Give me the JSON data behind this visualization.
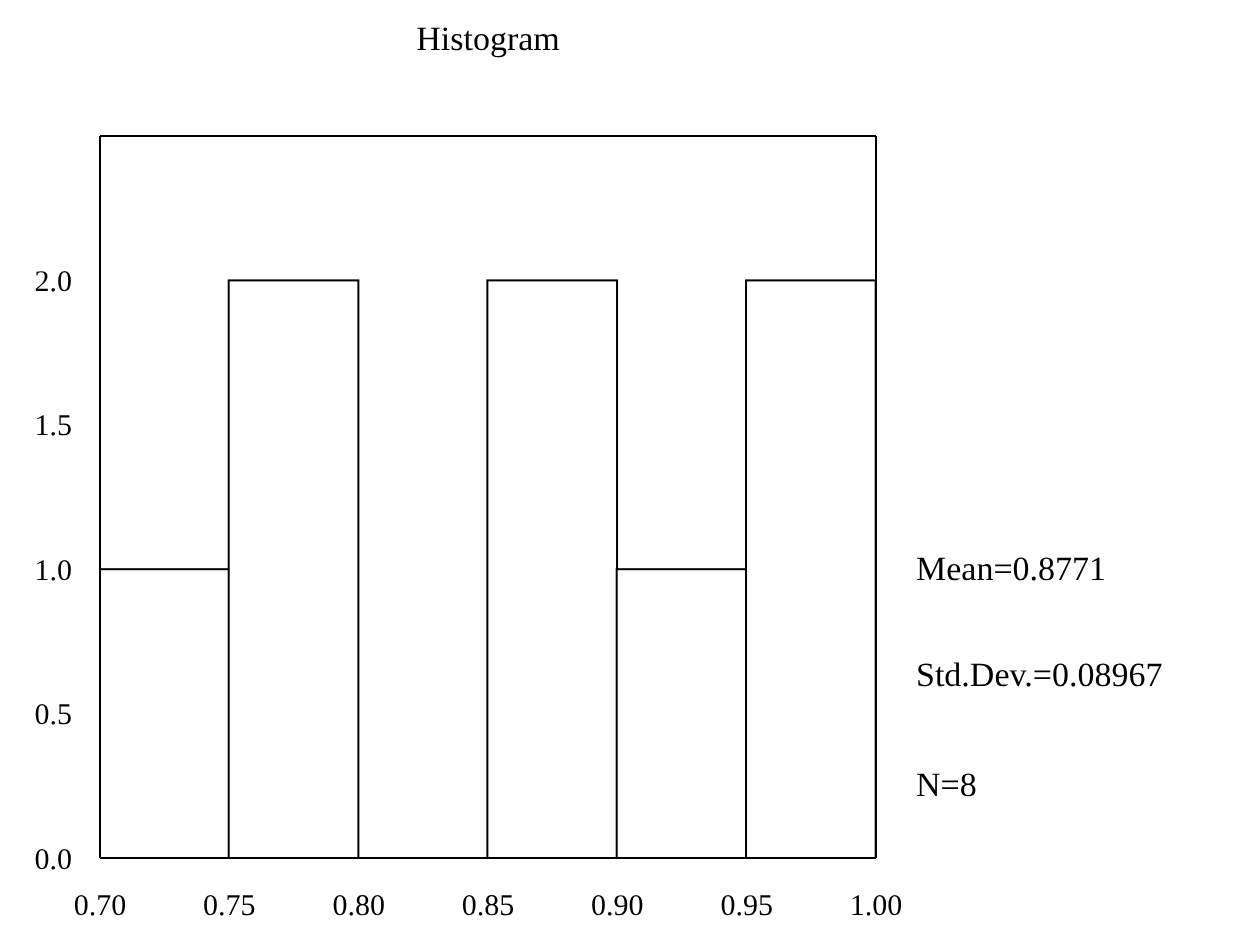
{
  "chart_data": {
    "type": "histogram",
    "title": "Histogram",
    "bins": [
      0.7,
      0.75,
      0.8,
      0.85,
      0.9,
      0.95,
      1.0
    ],
    "values": [
      1,
      2,
      0,
      2,
      1,
      2
    ],
    "color": "#ffffff",
    "xlim": [
      0.7,
      1.0
    ],
    "xticks": [
      {
        "value": 0.7,
        "label": "0.70"
      },
      0.75,
      {
        "value": 0.8,
        "label": "0.80"
      },
      0.85,
      {
        "value": 0.9,
        "label": "0.90"
      },
      0.95,
      {
        "value": 1.0,
        "label": "1.00"
      }
    ],
    "ylim": [
      0,
      2.5
    ],
    "yticks": [
      {
        "value": 0,
        "label": "0.0"
      },
      {
        "value": 0.5,
        "label": "0.5"
      },
      {
        "value": 1,
        "label": "1.0"
      },
      {
        "value": 1.5,
        "label": "1.5"
      },
      {
        "value": 2,
        "label": "2.0"
      }
    ],
    "grid": false,
    "annotations": [
      "Mean=0.8771",
      "Std.Dev.=0.08967",
      "N=8"
    ]
  }
}
